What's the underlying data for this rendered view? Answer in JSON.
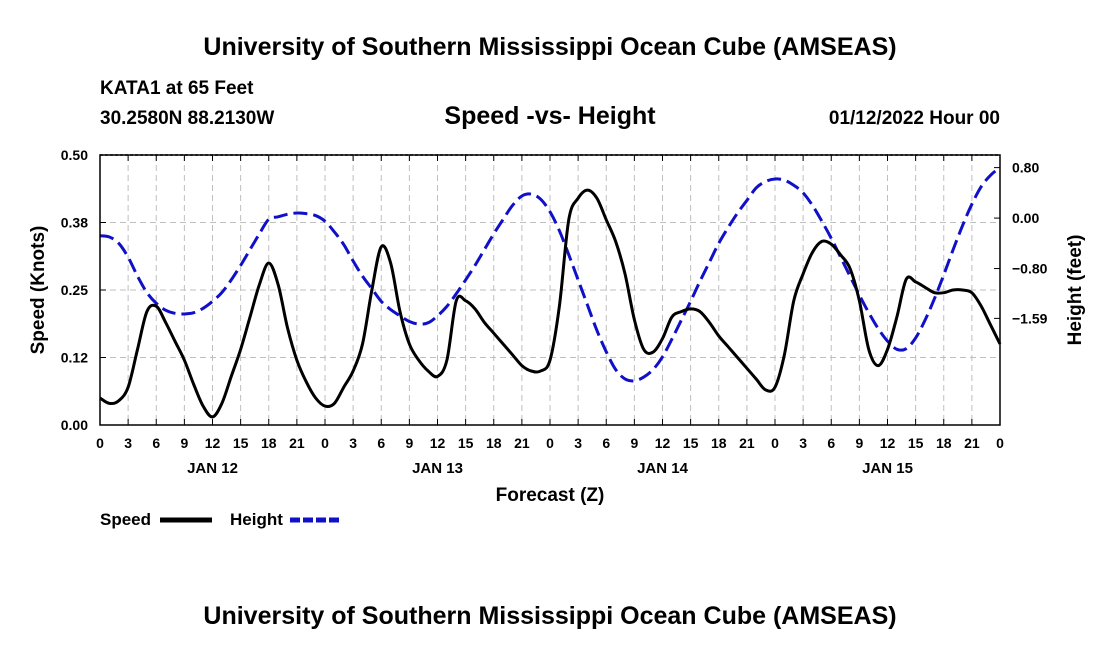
{
  "page": {
    "title": "University of Southern Mississippi Ocean Cube (AMSEAS)",
    "footer_title": "University of Southern Mississippi Ocean Cube (AMSEAS)",
    "station": "KATA1 at 65 Feet",
    "coords": "30.2580N  88.2130W",
    "date": "01/12/2022 Hour 00"
  },
  "chart_data": {
    "type": "line",
    "title": "Speed -vs- Height",
    "xlabel": "Forecast (Z)",
    "ylabel": "Speed (Knots)",
    "y2label": "Height (feet)",
    "ylim": [
      0,
      0.5
    ],
    "y2lim": [
      -3.28,
      1.0
    ],
    "xlim": [
      0,
      96
    ],
    "y_ticks": [
      "0.00",
      "0.12",
      "0.25",
      "0.38",
      "0.50"
    ],
    "y2_ticks": [
      {
        "value": 0.8,
        "label": "0.80"
      },
      {
        "value": 0.0,
        "label": "0.00"
      },
      {
        "value": -0.8,
        "label": "−0.80"
      },
      {
        "value": -1.59,
        "label": "−1.59"
      }
    ],
    "x_ticks": [
      "0",
      "3",
      "6",
      "9",
      "12",
      "15",
      "18",
      "21",
      "0",
      "3",
      "6",
      "9",
      "12",
      "15",
      "18",
      "21",
      "0",
      "3",
      "6",
      "9",
      "12",
      "15",
      "18",
      "21",
      "0",
      "3",
      "6",
      "9",
      "12",
      "15",
      "18",
      "21",
      "0"
    ],
    "day_labels": [
      {
        "label": "JAN 12",
        "hour": 12
      },
      {
        "label": "JAN 13",
        "hour": 36
      },
      {
        "label": "JAN 14",
        "hour": 60
      },
      {
        "label": "JAN 15",
        "hour": 84
      }
    ],
    "grid": true,
    "legend": [
      {
        "name": "Speed",
        "color": "#000000",
        "style": "solid"
      },
      {
        "name": "Height",
        "color": "#1010c8",
        "style": "dashed"
      }
    ],
    "series": [
      {
        "name": "Speed",
        "color": "#000000",
        "x": [
          0,
          1,
          2,
          3,
          4,
          5,
          6,
          7,
          8,
          9,
          10,
          11,
          12,
          13,
          14,
          15,
          16,
          17,
          18,
          19,
          20,
          21,
          22,
          23,
          24,
          25,
          26,
          27,
          28,
          29,
          30,
          31,
          32,
          33,
          34,
          35,
          36,
          37,
          38,
          39,
          40,
          41,
          42,
          43,
          44,
          45,
          46,
          47,
          48,
          49,
          50,
          51,
          52,
          53,
          54,
          55,
          56,
          57,
          58,
          59,
          60,
          61,
          62,
          63,
          64,
          65,
          66,
          67,
          68,
          69,
          70,
          71,
          72,
          73,
          74,
          75,
          76,
          77,
          78,
          79,
          80,
          81,
          82,
          83,
          84,
          85,
          86,
          87,
          88,
          89,
          90,
          91,
          92,
          93,
          94,
          95,
          96
        ],
        "y": [
          0.05,
          0.04,
          0.045,
          0.07,
          0.14,
          0.21,
          0.22,
          0.19,
          0.155,
          0.12,
          0.075,
          0.035,
          0.015,
          0.04,
          0.09,
          0.14,
          0.2,
          0.26,
          0.3,
          0.26,
          0.18,
          0.12,
          0.08,
          0.05,
          0.035,
          0.04,
          0.07,
          0.1,
          0.15,
          0.25,
          0.33,
          0.3,
          0.21,
          0.15,
          0.12,
          0.1,
          0.09,
          0.12,
          0.23,
          0.23,
          0.215,
          0.19,
          0.17,
          0.15,
          0.13,
          0.11,
          0.1,
          0.1,
          0.12,
          0.22,
          0.38,
          0.42,
          0.435,
          0.42,
          0.38,
          0.34,
          0.28,
          0.195,
          0.14,
          0.135,
          0.16,
          0.2,
          0.21,
          0.215,
          0.21,
          0.19,
          0.165,
          0.145,
          0.125,
          0.105,
          0.085,
          0.065,
          0.07,
          0.13,
          0.23,
          0.28,
          0.32,
          0.34,
          0.335,
          0.315,
          0.29,
          0.23,
          0.14,
          0.11,
          0.14,
          0.2,
          0.27,
          0.265,
          0.255,
          0.245,
          0.245,
          0.25,
          0.25,
          0.245,
          0.22,
          0.185,
          0.15
        ]
      },
      {
        "name": "Height",
        "color": "#1010c8",
        "x": [
          0,
          1,
          2,
          3,
          4,
          5,
          6,
          7,
          8,
          9,
          10,
          11,
          12,
          13,
          14,
          15,
          16,
          17,
          18,
          19,
          20,
          21,
          22,
          23,
          24,
          25,
          26,
          27,
          28,
          29,
          30,
          31,
          32,
          33,
          34,
          35,
          36,
          37,
          38,
          39,
          40,
          41,
          42,
          43,
          44,
          45,
          46,
          47,
          48,
          49,
          50,
          51,
          52,
          53,
          54,
          55,
          56,
          57,
          58,
          59,
          60,
          61,
          62,
          63,
          64,
          65,
          66,
          67,
          68,
          69,
          70,
          71,
          72,
          73,
          74,
          75,
          76,
          77,
          78,
          79,
          80,
          81,
          82,
          83,
          84,
          85,
          86,
          87,
          88,
          89,
          90,
          91,
          92,
          93,
          94,
          95,
          96
        ],
        "y": [
          -0.28,
          -0.3,
          -0.4,
          -0.62,
          -0.92,
          -1.18,
          -1.35,
          -1.46,
          -1.51,
          -1.52,
          -1.5,
          -1.43,
          -1.32,
          -1.18,
          -0.98,
          -0.75,
          -0.5,
          -0.25,
          -0.02,
          0.02,
          0.06,
          0.08,
          0.07,
          0.04,
          -0.05,
          -0.22,
          -0.42,
          -0.68,
          -0.92,
          -1.12,
          -1.32,
          -1.45,
          -1.55,
          -1.64,
          -1.68,
          -1.66,
          -1.55,
          -1.4,
          -1.2,
          -0.98,
          -0.75,
          -0.5,
          -0.25,
          -0.02,
          0.2,
          0.35,
          0.38,
          0.3,
          0.1,
          -0.2,
          -0.58,
          -0.98,
          -1.38,
          -1.78,
          -2.12,
          -2.4,
          -2.55,
          -2.58,
          -2.52,
          -2.4,
          -2.2,
          -1.92,
          -1.62,
          -1.32,
          -1.0,
          -0.7,
          -0.4,
          -0.15,
          0.08,
          0.28,
          0.48,
          0.58,
          0.62,
          0.6,
          0.52,
          0.4,
          0.2,
          -0.05,
          -0.32,
          -0.62,
          -0.92,
          -1.22,
          -1.5,
          -1.75,
          -1.95,
          -2.08,
          -2.07,
          -1.9,
          -1.62,
          -1.28,
          -0.9,
          -0.5,
          -0.12,
          0.22,
          0.5,
          0.68,
          0.8
        ]
      }
    ]
  }
}
